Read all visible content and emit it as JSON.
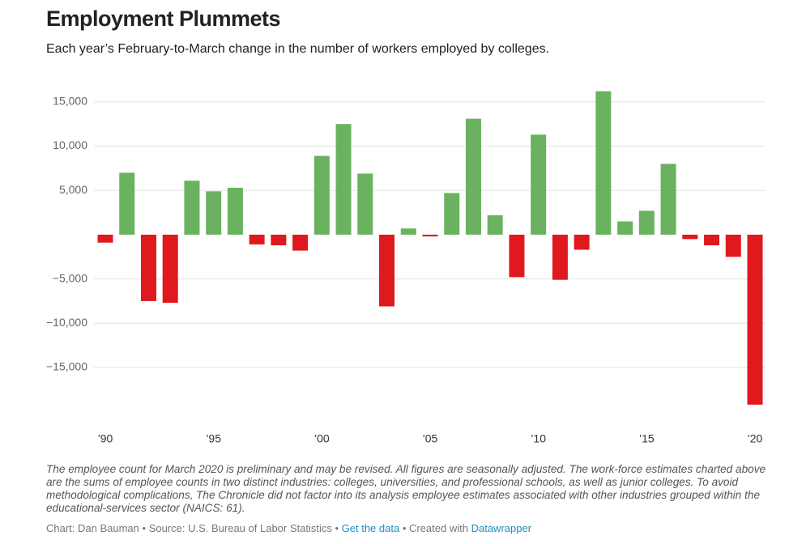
{
  "chart_data": {
    "type": "bar",
    "title": "Employment Plummets",
    "subtitle": "Each year’s February-to-March change in the number of workers employed by colleges.",
    "categories": [
      "’90",
      null,
      null,
      null,
      null,
      "’95",
      null,
      null,
      null,
      null,
      "’00",
      null,
      null,
      null,
      null,
      "’05",
      null,
      null,
      null,
      null,
      "’10",
      null,
      null,
      null,
      null,
      "’15",
      null,
      null,
      null,
      null,
      "’20"
    ],
    "values": [
      -900,
      7000,
      -7500,
      -7700,
      6100,
      4900,
      5300,
      -1100,
      -1200,
      -1800,
      8900,
      12500,
      6900,
      -8100,
      700,
      -200,
      4700,
      13100,
      2200,
      -4800,
      11300,
      -5100,
      -1700,
      16200,
      1500,
      2700,
      8000,
      -500,
      -1200,
      -2500,
      -19200
    ],
    "colors": {
      "positive": "#6ab25f",
      "negative": "#e0191f"
    },
    "ylim": [
      -20000,
      17000
    ],
    "yticks": [
      {
        "value": -15000,
        "label": "−15,000"
      },
      {
        "value": -10000,
        "label": "−10,000"
      },
      {
        "value": -5000,
        "label": "−5,000"
      },
      {
        "value": 5000,
        "label": "5,000"
      },
      {
        "value": 10000,
        "label": "10,000"
      },
      {
        "value": 15000,
        "label": "15,000"
      }
    ],
    "grid": true,
    "note": "The employee count for March 2020 is preliminary and may be revised. All figures are seasonally adjusted. The work-force estimates charted above are the sums of employee counts in two distinct industries: colleges, universities, and professional schools, as well as junior colleges. To avoid methodological complications, The Chronicle did not factor into its analysis employee estimates associated with other industries grouped within the educational-services sector (NAICS: 61).",
    "credit": "Chart: Dan Bauman",
    "source": "Source: U.S. Bureau of Labor Statistics",
    "data_link": "Get the data",
    "created_with": "Created with",
    "tool": "Datawrapper"
  }
}
